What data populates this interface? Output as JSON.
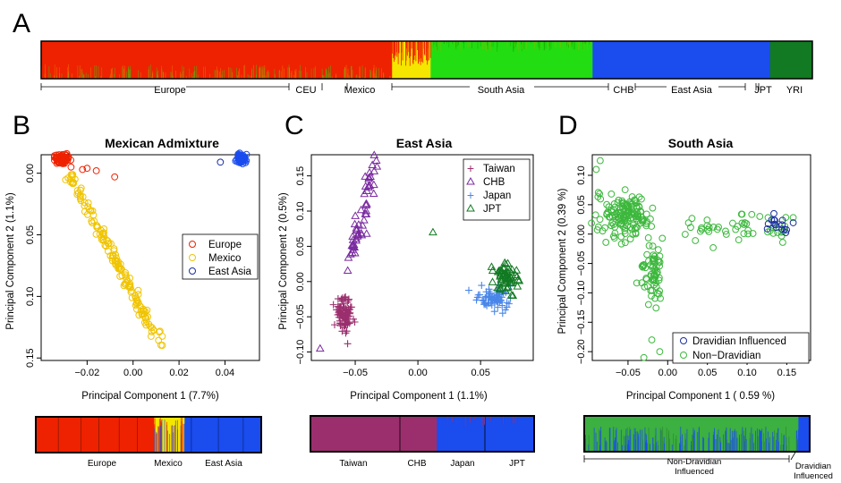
{
  "colors": {
    "europe": "#ee2200",
    "mexico": "#f5e600",
    "south_asia": "#22dd11",
    "east_asia": "#1a4cee",
    "yri": "#117a22",
    "taiwan": "#9b2f6e",
    "chb": "#7a2aa0",
    "japan": "#4a86e8",
    "jpt": "#117a22",
    "green_circle": "#3cb83c",
    "blue_circle": "#1a2ea0"
  },
  "panel_letters": [
    "A",
    "B",
    "C",
    "D"
  ],
  "panelA": {
    "segments": [
      {
        "name": "Europe",
        "color": "#ee2200",
        "share": 0.455
      },
      {
        "name": "Mexico",
        "color": "#f5e600",
        "share": 0.05
      },
      {
        "name": "South Asia",
        "color": "#22dd11",
        "share": 0.21
      },
      {
        "name": "CHB+East Asia+JPT",
        "color": "#1a4cee",
        "share": 0.23
      },
      {
        "name": "YRI",
        "color": "#117a22",
        "share": 0.055
      }
    ],
    "labels": [
      "Europe",
      "CEU",
      "Mexico",
      "South Asia",
      "CHB",
      "East Asia",
      "JPT",
      "YRI"
    ]
  },
  "chart_data": [
    {
      "type": "scatter",
      "title": "Mexican Admixture",
      "xlabel": "Principal Component 1 (7.7%)",
      "ylabel": "Principal Component 2 (1.1%)",
      "xlim": [
        -0.04,
        0.055
      ],
      "ylim": [
        0.152,
        -0.015
      ],
      "xticks": [
        -0.02,
        0.0,
        0.02,
        0.04
      ],
      "xtick_labels": [
        "−0.02",
        "0.00",
        "0.02",
        "0.04"
      ],
      "yticks": [
        0.0,
        0.05,
        0.1,
        0.15
      ],
      "ytick_labels": [
        "0.00",
        "0.05",
        "0.10",
        "0.15"
      ],
      "legend": [
        "Europe",
        "Mexico",
        "East Asia"
      ],
      "legend_position": "right",
      "series": [
        {
          "name": "Europe",
          "cluster": [
            -0.031,
            -0.012,
            0.003,
            0.003,
            70
          ]
        },
        {
          "name": "Europe outliers",
          "points": [
            [
              -0.027,
              -0.005
            ],
            [
              -0.02,
              -0.004
            ],
            [
              -0.016,
              -0.002
            ],
            [
              -0.008,
              0.003
            ],
            [
              -0.022,
              -0.003
            ]
          ]
        },
        {
          "name": "Mexico",
          "line": [
            [
              -0.028,
              0.0
            ],
            [
              0.013,
              0.142
            ]
          ],
          "count": 150
        },
        {
          "name": "East Asia",
          "cluster": [
            0.047,
            -0.012,
            0.002,
            0.003,
            60
          ]
        },
        {
          "name": "East Asia outlier",
          "points": [
            [
              0.038,
              -0.009
            ]
          ]
        }
      ]
    },
    {
      "type": "scatter",
      "title": "East Asia",
      "xlabel": "Principal Component 1 (1.1%)",
      "ylabel": "Principal Component 2 (0.5%)",
      "xlim": [
        -0.085,
        0.092
      ],
      "ylim": [
        -0.112,
        0.18
      ],
      "xticks": [
        -0.05,
        0.0,
        0.05
      ],
      "xtick_labels": [
        "−0.05",
        "0.00",
        "0.05"
      ],
      "yticks": [
        -0.1,
        -0.05,
        0.0,
        0.05,
        0.1,
        0.15
      ],
      "ytick_labels": [
        "−0.10",
        "−0.05",
        "0.00",
        "0.05",
        "0.10",
        "0.15"
      ],
      "legend": [
        "Taiwan",
        "CHB",
        "Japan",
        "JPT"
      ],
      "legend_position": "top-right",
      "series": [
        {
          "name": "Taiwan",
          "marker": "+",
          "cluster": [
            -0.058,
            -0.05,
            0.006,
            0.022,
            90
          ]
        },
        {
          "name": "CHB",
          "marker": "triangle",
          "line": [
            [
              -0.056,
              0.02
            ],
            [
              -0.032,
              0.175
            ]
          ],
          "count": 55
        },
        {
          "name": "Japan",
          "marker": "+",
          "cluster": [
            0.062,
            -0.025,
            0.012,
            0.015,
            70
          ]
        },
        {
          "name": "JPT",
          "marker": "triangle",
          "cluster": [
            0.07,
            0.005,
            0.009,
            0.018,
            60
          ]
        },
        {
          "name": "outliers",
          "marker": "triangle",
          "points": [
            [
              -0.078,
              -0.095
            ],
            [
              0.012,
              0.07
            ]
          ]
        }
      ]
    },
    {
      "type": "scatter",
      "title": "South Asia",
      "xlabel": "Principal Component 1  ( 0.59 %)",
      "ylabel": "Principal Component 2  (0.39 %)",
      "xlim": [
        -0.095,
        0.18
      ],
      "ylim": [
        -0.215,
        0.135
      ],
      "xticks": [
        -0.05,
        0.0,
        0.05,
        0.1,
        0.15
      ],
      "xtick_labels": [
        "−0.05",
        "0.00",
        "0.05",
        "0.10",
        "0.15"
      ],
      "yticks": [
        -0.2,
        -0.15,
        -0.1,
        -0.05,
        0.0,
        0.05,
        0.1
      ],
      "ytick_labels": [
        "−0.20",
        "−0.15",
        "−0.10",
        "−0.05",
        "0.00",
        "0.05",
        "0.10"
      ],
      "legend": [
        "Dravidian Influenced",
        "Non−Dravidian"
      ],
      "legend_position": "bottom-right",
      "series": [
        {
          "name": "Non-Dravidian",
          "spread": true,
          "count": 260
        },
        {
          "name": "Dravidian Influenced",
          "cluster": [
            0.14,
            0.02,
            0.015,
            0.015,
            16
          ]
        }
      ]
    }
  ],
  "barB": {
    "labels": [
      "Europe",
      "Mexico",
      "East Asia"
    ]
  },
  "barC": {
    "labels": [
      "Taiwan",
      "CHB",
      "Japan",
      "JPT"
    ]
  },
  "barD": {
    "labels": [
      "Non-Dravidian",
      "Influenced",
      "Dravidian",
      "Influenced"
    ]
  }
}
